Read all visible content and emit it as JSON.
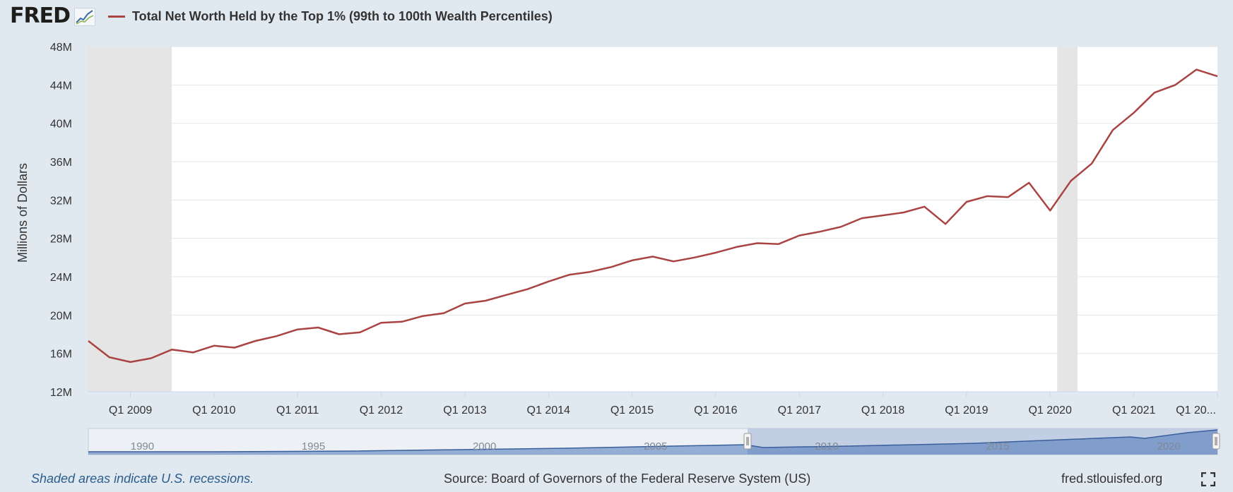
{
  "header": {
    "logo_text": "FRED",
    "logo_mark_icon": "line-chart-icon",
    "series_color": "#a94442"
  },
  "chart_data": {
    "type": "line",
    "title": "",
    "xlabel": "",
    "ylabel": "Millions of Dollars",
    "ylim": [
      12,
      48
    ],
    "grid": true,
    "legend_position": "top-left",
    "y_ticks": [
      "12M",
      "16M",
      "20M",
      "24M",
      "28M",
      "32M",
      "36M",
      "40M",
      "44M",
      "48M"
    ],
    "x_ticks": [
      "Q1 2009",
      "Q1 2010",
      "Q1 2011",
      "Q1 2012",
      "Q1 2013",
      "Q1 2014",
      "Q1 2015",
      "Q1 2016",
      "Q1 2017",
      "Q1 2018",
      "Q1 2019",
      "Q1 2020",
      "Q1 2021",
      "Q1 20..."
    ],
    "recessions": [
      [
        "2008-07-01",
        "2009-06-30"
      ],
      [
        "2020-02-01",
        "2020-04-30"
      ]
    ],
    "series": [
      {
        "name": "Total Net Worth Held by the Top 1% (99th to 100th Wealth Percentiles)",
        "x": [
          "2008-07-01",
          "2008-10-01",
          "2009-01-01",
          "2009-04-01",
          "2009-07-01",
          "2009-10-01",
          "2010-01-01",
          "2010-04-01",
          "2010-07-01",
          "2010-10-01",
          "2011-01-01",
          "2011-04-01",
          "2011-07-01",
          "2011-10-01",
          "2012-01-01",
          "2012-04-01",
          "2012-07-01",
          "2012-10-01",
          "2013-01-01",
          "2013-04-01",
          "2013-07-01",
          "2013-10-01",
          "2014-01-01",
          "2014-04-01",
          "2014-07-01",
          "2014-10-01",
          "2015-01-01",
          "2015-04-01",
          "2015-07-01",
          "2015-10-01",
          "2016-01-01",
          "2016-04-01",
          "2016-07-01",
          "2016-10-01",
          "2017-01-01",
          "2017-04-01",
          "2017-07-01",
          "2017-10-01",
          "2018-01-01",
          "2018-04-01",
          "2018-07-01",
          "2018-10-01",
          "2019-01-01",
          "2019-04-01",
          "2019-07-01",
          "2019-10-01",
          "2020-01-01",
          "2020-04-01",
          "2020-07-01",
          "2020-10-01",
          "2021-01-01",
          "2021-04-01",
          "2021-07-01",
          "2021-10-01",
          "2022-01-01"
        ],
        "values": [
          17.3,
          15.6,
          15.1,
          15.5,
          16.4,
          16.1,
          16.8,
          16.6,
          17.3,
          17.8,
          18.5,
          18.7,
          18.0,
          18.2,
          19.2,
          19.3,
          19.9,
          20.2,
          21.2,
          21.5,
          22.1,
          22.7,
          23.5,
          24.2,
          24.5,
          25.0,
          25.7,
          26.1,
          25.6,
          26.0,
          26.5,
          27.1,
          27.5,
          27.4,
          28.3,
          28.7,
          29.2,
          30.1,
          30.4,
          30.7,
          31.3,
          29.5,
          31.8,
          32.4,
          32.3,
          33.8,
          30.9,
          34.0,
          35.8,
          39.3,
          41.1,
          43.2,
          44.0,
          45.6,
          44.9
        ]
      }
    ]
  },
  "navigator": {
    "labels": [
      "1990",
      "1995",
      "2000",
      "2005",
      "2010",
      "2015",
      "2020"
    ]
  },
  "footer": {
    "note": "Shaded areas indicate U.S. recessions.",
    "source": "Source: Board of Governors of the Federal Reserve System (US)",
    "url": "fred.stlouisfed.org",
    "fullscreen_icon": "fullscreen-icon"
  }
}
